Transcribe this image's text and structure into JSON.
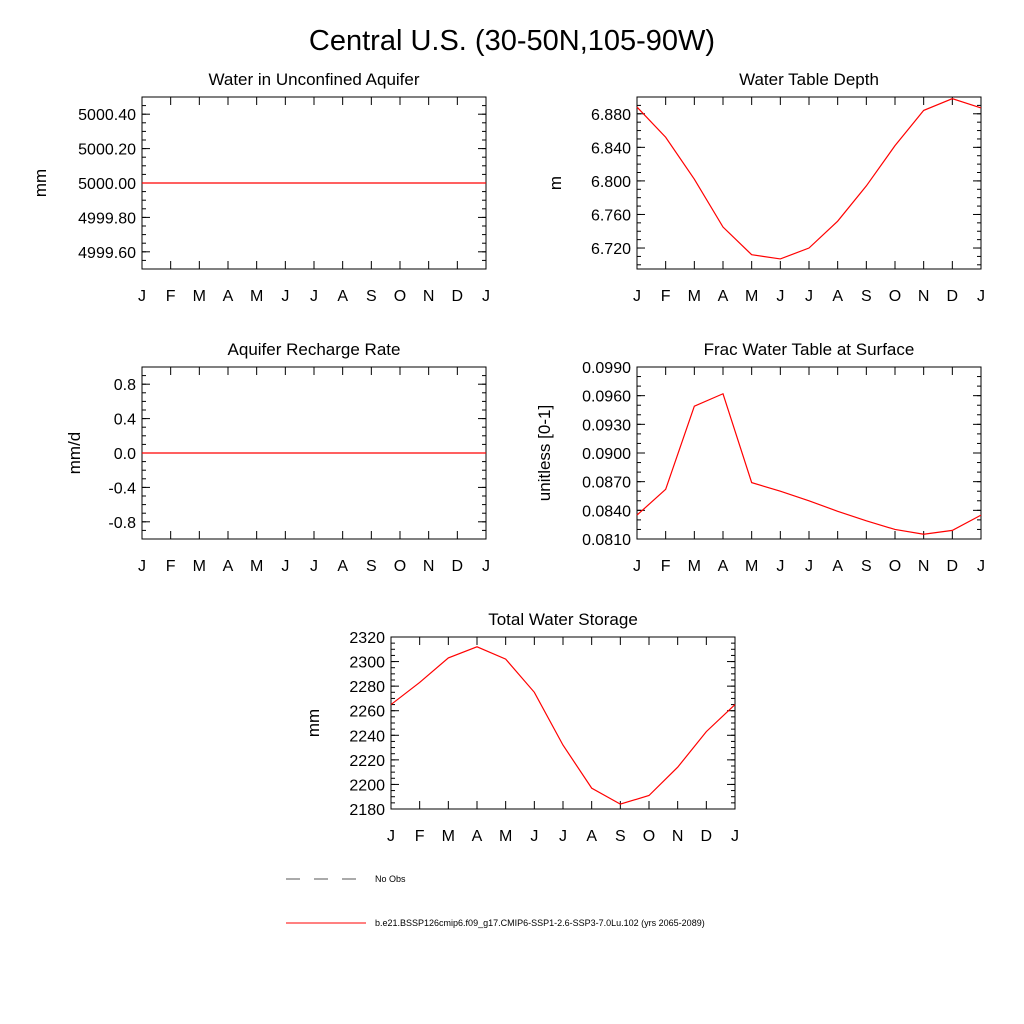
{
  "figure": {
    "title": "Central U.S. (30-50N,105-90W)"
  },
  "legend": {
    "items": [
      {
        "label": "No Obs",
        "color": "#555555",
        "dash": "dashed"
      },
      {
        "label": "b.e21.BSSP126cmip6.f09_g17.CMIP6-SSP1-2.6-SSP3-7.0Lu.102 (yrs 2065-2089)",
        "color": "#ff0000",
        "dash": "solid"
      }
    ]
  },
  "chart_data": [
    {
      "type": "line",
      "title": "Water in Unconfined Aquifer",
      "xlabel": "",
      "ylabel": "mm",
      "categories": [
        "J",
        "F",
        "M",
        "A",
        "M",
        "J",
        "J",
        "A",
        "S",
        "O",
        "N",
        "D",
        "J"
      ],
      "ylim": [
        4999.5,
        5000.5
      ],
      "yticks": [
        4999.6,
        4999.8,
        5000.0,
        5000.2,
        5000.4
      ],
      "ytick_labels": [
        "4999.60",
        "4999.80",
        "5000.00",
        "5000.20",
        "5000.40"
      ],
      "yminor_step": 0.05,
      "series": [
        {
          "color": "#ff0000",
          "values": [
            5000,
            5000,
            5000,
            5000,
            5000,
            5000,
            5000,
            5000,
            5000,
            5000,
            5000,
            5000,
            5000
          ]
        }
      ]
    },
    {
      "type": "line",
      "title": "Water Table Depth",
      "xlabel": "",
      "ylabel": "m",
      "categories": [
        "J",
        "F",
        "M",
        "A",
        "M",
        "J",
        "J",
        "A",
        "S",
        "O",
        "N",
        "D",
        "J"
      ],
      "ylim": [
        6.695,
        6.9
      ],
      "yticks": [
        6.72,
        6.76,
        6.8,
        6.84,
        6.88
      ],
      "ytick_labels": [
        "6.720",
        "6.760",
        "6.800",
        "6.840",
        "6.880"
      ],
      "yminor_step": 0.01,
      "series": [
        {
          "color": "#ff0000",
          "values": [
            6.888,
            6.852,
            6.802,
            6.745,
            6.712,
            6.707,
            6.72,
            6.752,
            6.794,
            6.842,
            6.884,
            6.898,
            6.887
          ]
        }
      ]
    },
    {
      "type": "line",
      "title": "Aquifer Recharge Rate",
      "xlabel": "",
      "ylabel": "mm/d",
      "categories": [
        "J",
        "F",
        "M",
        "A",
        "M",
        "J",
        "J",
        "A",
        "S",
        "O",
        "N",
        "D",
        "J"
      ],
      "ylim": [
        -1.0,
        1.0
      ],
      "yticks": [
        -0.8,
        -0.4,
        0.0,
        0.4,
        0.8
      ],
      "ytick_labels": [
        "-0.8",
        "-0.4",
        "0.0",
        "0.4",
        "0.8"
      ],
      "yminor_step": 0.1,
      "series": [
        {
          "color": "#ff0000",
          "values": [
            0,
            0,
            0,
            0,
            0,
            0,
            0,
            0,
            0,
            0,
            0,
            0,
            0
          ]
        }
      ]
    },
    {
      "type": "line",
      "title": "Frac Water Table at Surface",
      "xlabel": "",
      "ylabel": "unitless [0-1]",
      "categories": [
        "J",
        "F",
        "M",
        "A",
        "M",
        "J",
        "J",
        "A",
        "S",
        "O",
        "N",
        "D",
        "J"
      ],
      "ylim": [
        0.081,
        0.099
      ],
      "yticks": [
        0.081,
        0.084,
        0.087,
        0.09,
        0.093,
        0.096,
        0.099
      ],
      "ytick_labels": [
        "0.0810",
        "0.0840",
        "0.0870",
        "0.0900",
        "0.0930",
        "0.0960",
        "0.0990"
      ],
      "yminor_step": 0.001,
      "series": [
        {
          "color": "#ff0000",
          "values": [
            0.0835,
            0.0862,
            0.0949,
            0.0962,
            0.0869,
            0.086,
            0.085,
            0.0839,
            0.0829,
            0.082,
            0.0815,
            0.0819,
            0.0835
          ]
        }
      ]
    },
    {
      "type": "line",
      "title": "Total Water Storage",
      "xlabel": "",
      "ylabel": "mm",
      "categories": [
        "J",
        "F",
        "M",
        "A",
        "M",
        "J",
        "J",
        "A",
        "S",
        "O",
        "N",
        "D",
        "J"
      ],
      "ylim": [
        2180,
        2320
      ],
      "yticks": [
        2180,
        2200,
        2220,
        2240,
        2260,
        2280,
        2300,
        2320
      ],
      "ytick_labels": [
        "2180",
        "2200",
        "2220",
        "2240",
        "2260",
        "2280",
        "2300",
        "2320"
      ],
      "yminor_step": 5,
      "series": [
        {
          "color": "#ff0000",
          "values": [
            2265,
            2283,
            2303,
            2312,
            2302,
            2275,
            2232,
            2197,
            2184,
            2191,
            2214,
            2243,
            2265
          ]
        }
      ]
    }
  ]
}
